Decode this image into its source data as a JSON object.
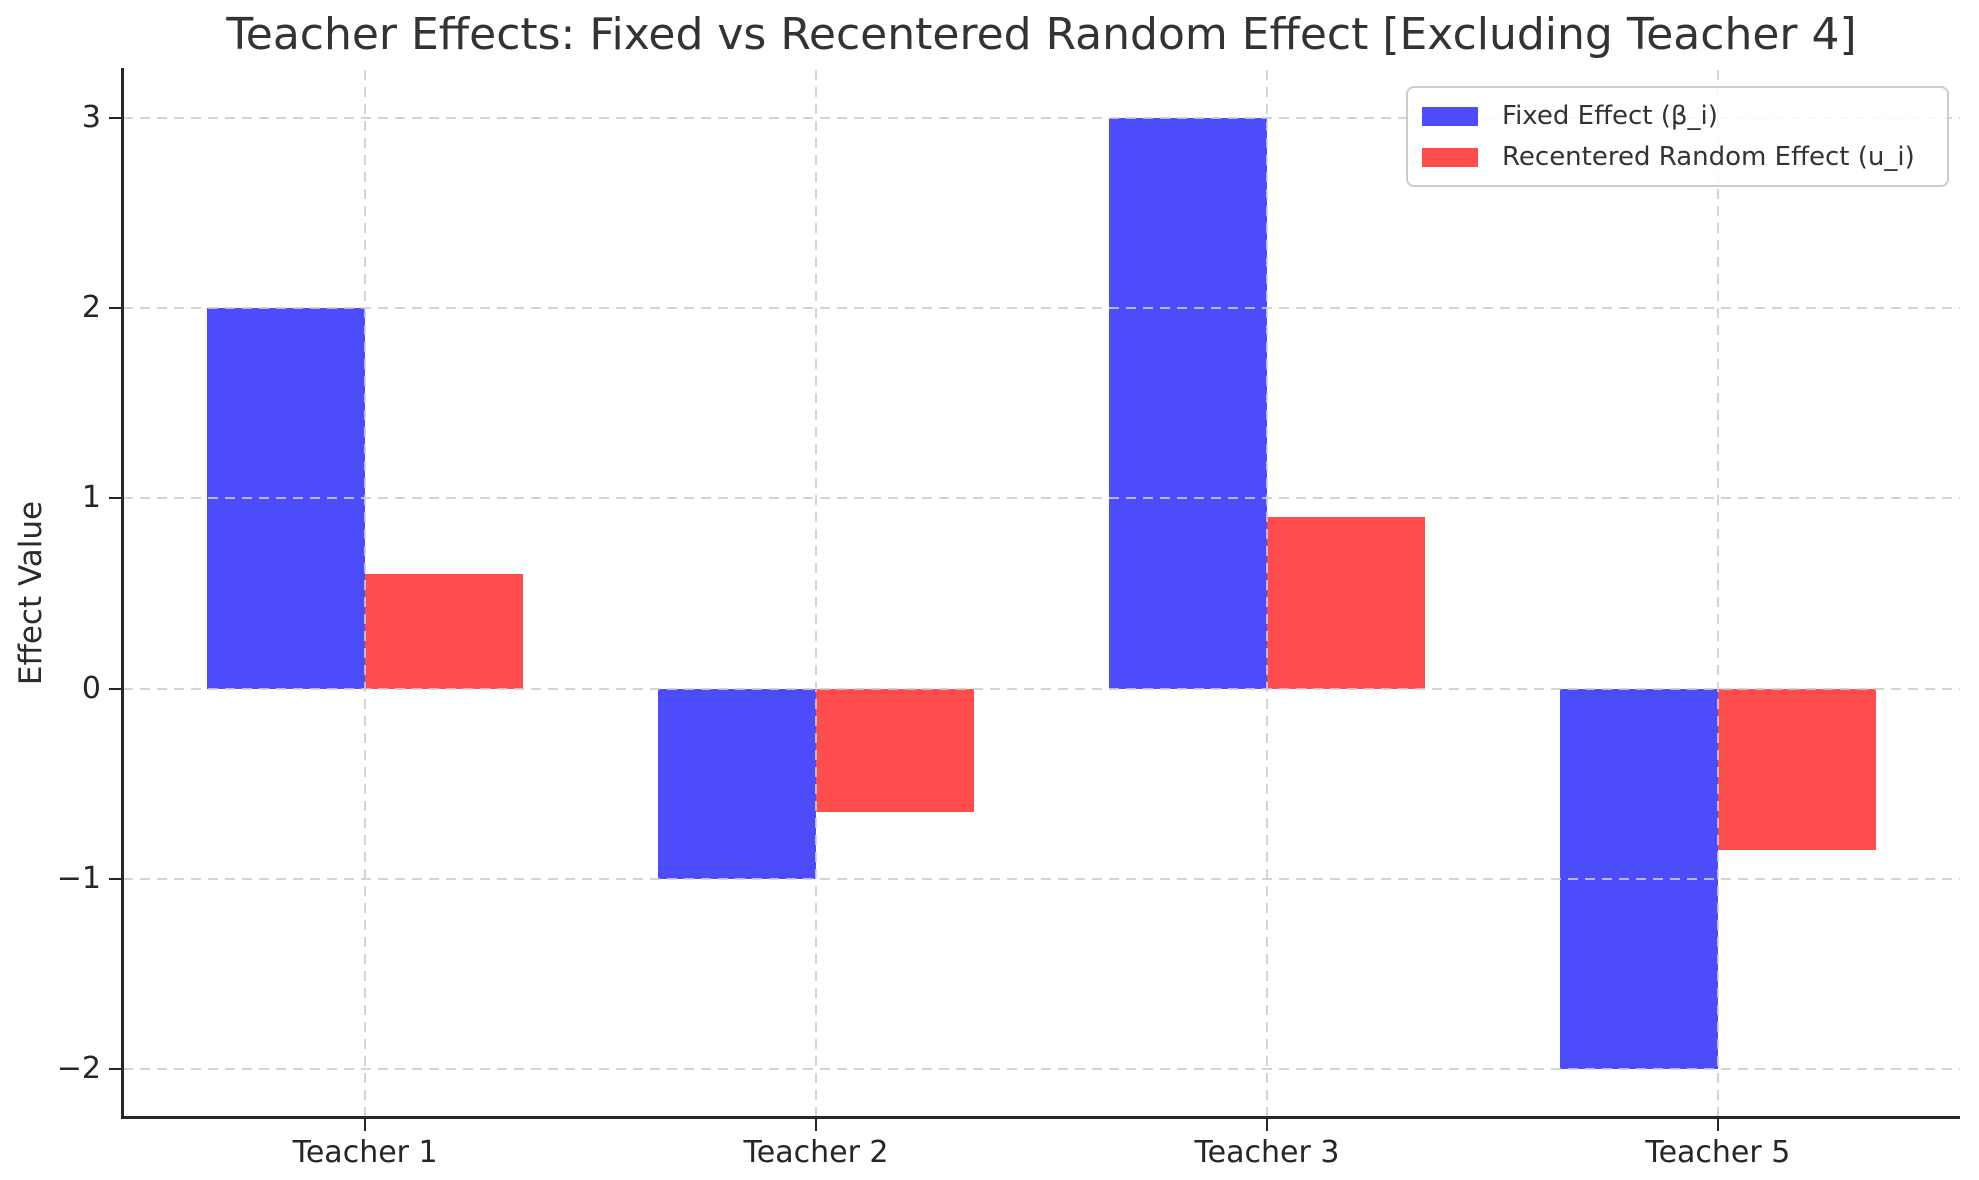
{
  "figure": {
    "background": "#ffffff"
  },
  "chart_data": {
    "type": "bar",
    "title": "Teacher Effects: Fixed vs Recentered Random Effect [Excluding Teacher 4]",
    "xlabel": "",
    "ylabel": "Effect Value",
    "categories": [
      "Teacher 1",
      "Teacher 2",
      "Teacher 3",
      "Teacher 5"
    ],
    "series": [
      {
        "name": "Fixed Effect (β_i)",
        "color": "#4C4CFA",
        "values": [
          2.0,
          -1.0,
          3.0,
          -2.0
        ]
      },
      {
        "name": "Recentered Random Effect (u_i)",
        "color": "#FF4C4C",
        "values": [
          0.6,
          -0.65,
          0.9,
          -0.85
        ]
      }
    ],
    "bar_width": 0.35,
    "ylim": [
      -2.25,
      3.25
    ],
    "xlim": [
      -0.537,
      3.537
    ],
    "yticks": [
      3,
      2,
      1,
      0,
      -1,
      -2
    ],
    "ytick_labels": [
      "3",
      "2",
      "1",
      "0",
      "−1",
      "−2"
    ],
    "grid": "both-axes-dashed",
    "grid_above_bars": true,
    "legend_position": "upper-right",
    "colors": {
      "grid": "#cccccc",
      "spine": "#262626",
      "tick_text": "#262626",
      "title_text": "#333333",
      "fixed_bar": "#4C4CFA",
      "random_bar": "#FF4C4C"
    }
  }
}
